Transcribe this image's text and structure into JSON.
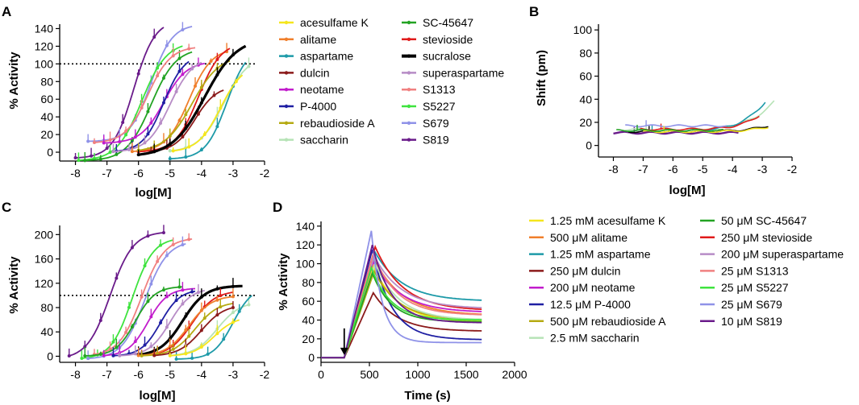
{
  "panels": {
    "A": {
      "letter": "A",
      "ylabel": "% Activity",
      "xlabel": "log[M]"
    },
    "B": {
      "letter": "B",
      "ylabel": "Shift (pm)",
      "xlabel": "log[M]"
    },
    "C": {
      "letter": "C",
      "ylabel": "% Activity",
      "xlabel": "log[M]"
    },
    "D": {
      "letter": "D",
      "ylabel": "% Activity",
      "xlabel": "Time (s)"
    }
  },
  "legendAB": [
    {
      "label": "acesulfame K",
      "color": "#f5e61c"
    },
    {
      "label": "alitame",
      "color": "#f07f2c"
    },
    {
      "label": "aspartame",
      "color": "#1d9aa8"
    },
    {
      "label": "dulcin",
      "color": "#8b1a1a"
    },
    {
      "label": "neotame",
      "color": "#c21ccc"
    },
    {
      "label": "P-4000",
      "color": "#1f1fa3"
    },
    {
      "label": "rebaudioside A",
      "color": "#b5aa12"
    },
    {
      "label": "saccharin",
      "color": "#b6e3b6"
    },
    {
      "label": "SC-45647",
      "color": "#23a323"
    },
    {
      "label": "stevioside",
      "color": "#e01b1b"
    },
    {
      "label": "sucralose",
      "color": "#000000"
    },
    {
      "label": "superaspartame",
      "color": "#b78cc6"
    },
    {
      "label": "S1313",
      "color": "#f08080"
    },
    {
      "label": "S5227",
      "color": "#3ee33e"
    },
    {
      "label": "S679",
      "color": "#8f92e8"
    },
    {
      "label": "S819",
      "color": "#6a1b8a"
    }
  ],
  "legendD": [
    {
      "label": "1.25 mM acesulfame K",
      "color": "#f5e61c"
    },
    {
      "label": "500 μM alitame",
      "color": "#f07f2c"
    },
    {
      "label": "1.25 mM aspartame",
      "color": "#1d9aa8"
    },
    {
      "label": "250 μM dulcin",
      "color": "#8b1a1a"
    },
    {
      "label": "200 μM neotame",
      "color": "#c21ccc"
    },
    {
      "label": "12.5 μM P-4000",
      "color": "#1f1fa3"
    },
    {
      "label": "500 μM rebaudioside A",
      "color": "#b5aa12"
    },
    {
      "label": "2.5 mM saccharin",
      "color": "#b6e3b6"
    },
    {
      "label": "50 μM SC-45647",
      "color": "#23a323"
    },
    {
      "label": "250 μM stevioside",
      "color": "#e01b1b"
    },
    {
      "label": "200 μM superaspartame",
      "color": "#b78cc6"
    },
    {
      "label": "25 μM S1313",
      "color": "#f08080"
    },
    {
      "label": "25 μM S5227",
      "color": "#3ee33e"
    },
    {
      "label": "25 μM S679",
      "color": "#8f92e8"
    },
    {
      "label": "10 μM S819",
      "color": "#6a1b8a"
    }
  ],
  "chart_data": [
    {
      "panel": "A",
      "type": "line",
      "xlabel": "log[M]",
      "ylabel": "% Activity",
      "xlim": [
        -8.5,
        -2
      ],
      "ylim": [
        -10,
        145
      ],
      "xticks": [
        -8,
        -7,
        -6,
        -5,
        -4,
        -3,
        -2
      ],
      "yticks": [
        0,
        20,
        40,
        60,
        80,
        100,
        120,
        140
      ],
      "reference_line": 100,
      "series": [
        {
          "name": "S819",
          "color": "#6a1b8a",
          "logEC50": -6.15,
          "top": 150,
          "bottom": -7,
          "hill": 1.3,
          "xrange": [
            -8,
            -5.2
          ]
        },
        {
          "name": "S679",
          "color": "#8f92e8",
          "logEC50": -5.6,
          "top": 145,
          "bottom": 12,
          "hill": 1.3,
          "xrange": [
            -7.6,
            -4.3
          ]
        },
        {
          "name": "S5227",
          "color": "#3ee33e",
          "logEC50": -5.9,
          "top": 125,
          "bottom": -10,
          "hill": 1.1,
          "xrange": [
            -7.9,
            -4.6
          ]
        },
        {
          "name": "SC-45647",
          "color": "#23a323",
          "logEC50": -5.6,
          "top": 118,
          "bottom": -10,
          "hill": 1.1,
          "xrange": [
            -7.7,
            -4.3
          ]
        },
        {
          "name": "S1313",
          "color": "#f08080",
          "logEC50": -5.7,
          "top": 120,
          "bottom": 10,
          "hill": 1.2,
          "xrange": [
            -7.4,
            -4.2
          ]
        },
        {
          "name": "neotame",
          "color": "#c21ccc",
          "logEC50": -5.2,
          "top": 103,
          "bottom": 10,
          "hill": 1.2,
          "xrange": [
            -7.1,
            -3.9
          ]
        },
        {
          "name": "P-4000",
          "color": "#1f1fa3",
          "logEC50": -5.2,
          "top": 112,
          "bottom": 0,
          "hill": 1.3,
          "xrange": [
            -6.7,
            -4.4
          ]
        },
        {
          "name": "superaspartame",
          "color": "#b78cc6",
          "logEC50": -5.0,
          "top": 108,
          "bottom": 0,
          "hill": 1.2,
          "xrange": [
            -6.8,
            -4.0
          ]
        },
        {
          "name": "alitame",
          "color": "#f07f2c",
          "logEC50": -4.4,
          "top": 118,
          "bottom": 0,
          "hill": 1.2,
          "xrange": [
            -6.2,
            -3.2
          ]
        },
        {
          "name": "stevioside",
          "color": "#e01b1b",
          "logEC50": -4.1,
          "top": 125,
          "bottom": 0,
          "hill": 1.2,
          "xrange": [
            -6.0,
            -3.1
          ]
        },
        {
          "name": "rebaudioside A",
          "color": "#b5aa12",
          "logEC50": -4.3,
          "top": 110,
          "bottom": 0,
          "hill": 1.0,
          "xrange": [
            -6.0,
            -3.1
          ]
        },
        {
          "name": "dulcin",
          "color": "#8b1a1a",
          "logEC50": -4.2,
          "top": 75,
          "bottom": 0,
          "hill": 1.3,
          "xrange": [
            -5.6,
            -3.3
          ]
        },
        {
          "name": "sucralose",
          "color": "#000000",
          "logEC50": -3.9,
          "top": 130,
          "bottom": -5,
          "hill": 0.85,
          "xrange": [
            -6.0,
            -2.6
          ]
        },
        {
          "name": "saccharin",
          "color": "#b6e3b6",
          "logEC50": -3.3,
          "top": 110,
          "bottom": 0,
          "hill": 1.1,
          "xrange": [
            -5.0,
            -2.5
          ]
        },
        {
          "name": "aspartame",
          "color": "#1d9aa8",
          "logEC50": -3.2,
          "top": 120,
          "bottom": -8,
          "hill": 1.3,
          "xrange": [
            -5.0,
            -2.6
          ]
        },
        {
          "name": "acesulfame K",
          "color": "#f5e61c",
          "logEC50": -3.4,
          "top": 100,
          "bottom": 0,
          "hill": 1.2,
          "xrange": [
            -4.9,
            -2.7
          ]
        }
      ]
    },
    {
      "panel": "B",
      "type": "line",
      "xlabel": "log[M]",
      "ylabel": "Shift (pm)",
      "xlim": [
        -8.5,
        -2
      ],
      "ylim": [
        -10,
        105
      ],
      "xticks": [
        -8,
        -7,
        -6,
        -5,
        -4,
        -3,
        -2
      ],
      "yticks": [
        0,
        20,
        40,
        60,
        80,
        100
      ],
      "series": [
        {
          "name": "S819",
          "color": "#6a1b8a",
          "base": 11,
          "rise": 0,
          "xrange": [
            -8.0,
            -3.8
          ]
        },
        {
          "name": "sucralose",
          "color": "#000000",
          "base": 12,
          "rise": 5,
          "xrange": [
            -7.5,
            -2.8
          ]
        },
        {
          "name": "saccharin",
          "color": "#b6e3b6",
          "base": 14,
          "rise": 24,
          "xrange": [
            -7.6,
            -2.6
          ]
        },
        {
          "name": "aspartame",
          "color": "#1d9aa8",
          "base": 13,
          "rise": 25,
          "xrange": [
            -7.4,
            -2.9
          ]
        },
        {
          "name": "stevioside",
          "color": "#e01b1b",
          "base": 14,
          "rise": 12,
          "xrange": [
            -7.1,
            -3.1
          ]
        },
        {
          "name": "S679",
          "color": "#8f92e8",
          "base": 17,
          "rise": 0,
          "xrange": [
            -7.6,
            -4.2
          ]
        },
        {
          "name": "acesulfame K",
          "color": "#f5e61c",
          "base": 12,
          "rise": 4,
          "xrange": [
            -7.0,
            -2.8
          ]
        },
        {
          "name": "SC-45647",
          "color": "#23a323",
          "base": 13,
          "rise": 0,
          "xrange": [
            -7.9,
            -4.3
          ]
        }
      ]
    },
    {
      "panel": "C",
      "type": "line",
      "xlabel": "log[M]",
      "ylabel": "% Activity",
      "xlim": [
        -8.5,
        -2
      ],
      "ylim": [
        -10,
        215
      ],
      "xticks": [
        -8,
        -7,
        -6,
        -5,
        -4,
        -3,
        -2
      ],
      "yticks": [
        0,
        40,
        80,
        120,
        160,
        200
      ],
      "reference_line": 100,
      "series": [
        {
          "name": "S819",
          "color": "#6a1b8a",
          "logEC50": -6.9,
          "top": 205,
          "bottom": -5,
          "hill": 1.2,
          "xrange": [
            -8.2,
            -5.2
          ]
        },
        {
          "name": "S5227",
          "color": "#3ee33e",
          "logEC50": -6.2,
          "top": 195,
          "bottom": -5,
          "hill": 1.3,
          "xrange": [
            -7.8,
            -4.9
          ]
        },
        {
          "name": "S1313",
          "color": "#f08080",
          "logEC50": -5.9,
          "top": 195,
          "bottom": 0,
          "hill": 1.2,
          "xrange": [
            -7.4,
            -4.3
          ]
        },
        {
          "name": "S679",
          "color": "#8f92e8",
          "logEC50": -5.8,
          "top": 190,
          "bottom": -5,
          "hill": 1.2,
          "xrange": [
            -7.6,
            -4.5
          ]
        },
        {
          "name": "SC-45647",
          "color": "#23a323",
          "logEC50": -6.1,
          "top": 115,
          "bottom": 0,
          "hill": 1.4,
          "xrange": [
            -7.7,
            -4.6
          ]
        },
        {
          "name": "neotame",
          "color": "#c21ccc",
          "logEC50": -5.7,
          "top": 112,
          "bottom": 0,
          "hill": 1.4,
          "xrange": [
            -7.1,
            -4.2
          ]
        },
        {
          "name": "P-4000",
          "color": "#1f1fa3",
          "logEC50": -5.3,
          "top": 110,
          "bottom": 0,
          "hill": 1.4,
          "xrange": [
            -6.8,
            -4.2
          ]
        },
        {
          "name": "superaspartame",
          "color": "#b78cc6",
          "logEC50": -5.0,
          "top": 112,
          "bottom": 0,
          "hill": 1.3,
          "xrange": [
            -6.6,
            -3.9
          ]
        },
        {
          "name": "sucralose",
          "color": "#000000",
          "logEC50": -4.6,
          "top": 116,
          "bottom": 0,
          "hill": 1.2,
          "xrange": [
            -6.0,
            -2.7
          ]
        },
        {
          "name": "stevioside",
          "color": "#e01b1b",
          "logEC50": -4.3,
          "top": 108,
          "bottom": 0,
          "hill": 1.2,
          "xrange": [
            -5.9,
            -3.0
          ]
        },
        {
          "name": "alitame",
          "color": "#f07f2c",
          "logEC50": -4.4,
          "top": 100,
          "bottom": 0,
          "hill": 1.2,
          "xrange": [
            -6.0,
            -3.0
          ]
        },
        {
          "name": "rebaudioside A",
          "color": "#b5aa12",
          "logEC50": -4.2,
          "top": 90,
          "bottom": 0,
          "hill": 1.2,
          "xrange": [
            -5.9,
            -3.0
          ]
        },
        {
          "name": "dulcin",
          "color": "#8b1a1a",
          "logEC50": -4.0,
          "top": 85,
          "bottom": 0,
          "hill": 1.2,
          "xrange": [
            -5.5,
            -3.0
          ]
        },
        {
          "name": "saccharin",
          "color": "#b6e3b6",
          "logEC50": -3.5,
          "top": 90,
          "bottom": 0,
          "hill": 1.2,
          "xrange": [
            -5.0,
            -2.5
          ]
        },
        {
          "name": "aspartame",
          "color": "#1d9aa8",
          "logEC50": -3.0,
          "top": 115,
          "bottom": -5,
          "hill": 1.4,
          "xrange": [
            -4.8,
            -2.4
          ]
        },
        {
          "name": "acesulfame K",
          "color": "#f5e61c",
          "logEC50": -3.6,
          "top": 65,
          "bottom": 0,
          "hill": 1.3,
          "xrange": [
            -5.0,
            -2.8
          ]
        }
      ]
    },
    {
      "panel": "D",
      "type": "line",
      "xlabel": "Time (s)",
      "ylabel": "% Activity",
      "xlim": [
        0,
        2000
      ],
      "ylim": [
        -5,
        145
      ],
      "xticks": [
        0,
        500,
        1000,
        1500,
        2000
      ],
      "yticks": [
        0,
        20,
        40,
        60,
        80,
        100,
        120,
        140
      ],
      "arrow_at": 240,
      "series": [
        {
          "name": "1.25 mM acesulfame K",
          "color": "#f5e61c",
          "peak": 98,
          "tpeak": 540,
          "end": 38,
          "k": 0.004
        },
        {
          "name": "500 μM alitame",
          "color": "#f07f2c",
          "peak": 105,
          "tpeak": 550,
          "end": 45,
          "k": 0.0035
        },
        {
          "name": "1.25 mM aspartame",
          "color": "#1d9aa8",
          "peak": 112,
          "tpeak": 560,
          "end": 60,
          "k": 0.0035
        },
        {
          "name": "250 μM dulcin",
          "color": "#8b1a1a",
          "peak": 69,
          "tpeak": 540,
          "end": 28,
          "k": 0.004
        },
        {
          "name": "200 μM neotame",
          "color": "#c21ccc",
          "peak": 102,
          "tpeak": 540,
          "end": 48,
          "k": 0.0035
        },
        {
          "name": "12.5 μM P-4000",
          "color": "#1f1fa3",
          "peak": 115,
          "tpeak": 530,
          "end": 19,
          "k": 0.005
        },
        {
          "name": "500 μM rebaudioside A",
          "color": "#b5aa12",
          "peak": 92,
          "tpeak": 550,
          "end": 40,
          "k": 0.004
        },
        {
          "name": "2.5 mM saccharin",
          "color": "#b6e3b6",
          "peak": 100,
          "tpeak": 560,
          "end": 40,
          "k": 0.004
        },
        {
          "name": "50 μM SC-45647",
          "color": "#23a323",
          "peak": 90,
          "tpeak": 530,
          "end": 38,
          "k": 0.005
        },
        {
          "name": "250 μM stevioside",
          "color": "#e01b1b",
          "peak": 118,
          "tpeak": 560,
          "end": 50,
          "k": 0.0035
        },
        {
          "name": "200 μM superaspartame",
          "color": "#b78cc6",
          "peak": 108,
          "tpeak": 550,
          "end": 52,
          "k": 0.0035
        },
        {
          "name": "25 μM S1313",
          "color": "#f08080",
          "peak": 110,
          "tpeak": 540,
          "end": 45,
          "k": 0.004
        },
        {
          "name": "25 μM S5227",
          "color": "#3ee33e",
          "peak": 96,
          "tpeak": 520,
          "end": 40,
          "k": 0.005
        },
        {
          "name": "25 μM S679",
          "color": "#8f92e8",
          "peak": 135,
          "tpeak": 520,
          "end": 16,
          "k": 0.009
        },
        {
          "name": "10 μM S819",
          "color": "#6a1b8a",
          "peak": 120,
          "tpeak": 530,
          "end": 37,
          "k": 0.005
        }
      ]
    }
  ]
}
